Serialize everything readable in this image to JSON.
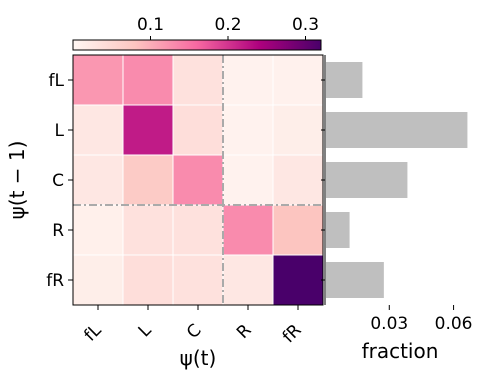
{
  "chart_data": [
    {
      "type": "heatmap",
      "row_categories": [
        "fL",
        "L",
        "C",
        "R",
        "fR"
      ],
      "col_categories": [
        "fL",
        "L",
        "C",
        "R",
        "fR"
      ],
      "values": [
        [
          0.12,
          0.13,
          0.035,
          0.008,
          0.01
        ],
        [
          0.025,
          0.22,
          0.04,
          0.008,
          0.015
        ],
        [
          0.025,
          0.07,
          0.13,
          0.008,
          0.025
        ],
        [
          0.012,
          0.035,
          0.035,
          0.13,
          0.08
        ],
        [
          0.015,
          0.04,
          0.035,
          0.025,
          0.33
        ]
      ],
      "xlabel": "ψ(t)",
      "ylabel": "ψ(t − 1)",
      "colorbar": {
        "ticks": [
          0.1,
          0.2,
          0.3
        ],
        "tick_labels": [
          "0.1",
          "0.2",
          "0.3"
        ],
        "range": [
          0,
          0.32
        ],
        "colormap": "RdPu",
        "position": "top"
      },
      "dividers": {
        "style": "dash-dot",
        "color": "#aaaaaa",
        "after_column": 3,
        "after_row": 3
      }
    },
    {
      "type": "bar",
      "orientation": "horizontal",
      "categories": [
        "fL",
        "L",
        "C",
        "R",
        "fR"
      ],
      "values": [
        0.017,
        0.066,
        0.038,
        0.011,
        0.027
      ],
      "xlabel": "fraction",
      "xticks": [
        0.03,
        0.06
      ],
      "xtick_labels": [
        "0.03",
        "0.06"
      ],
      "xlim": [
        0,
        0.07
      ],
      "bar_color": "#bfbfbf"
    }
  ]
}
